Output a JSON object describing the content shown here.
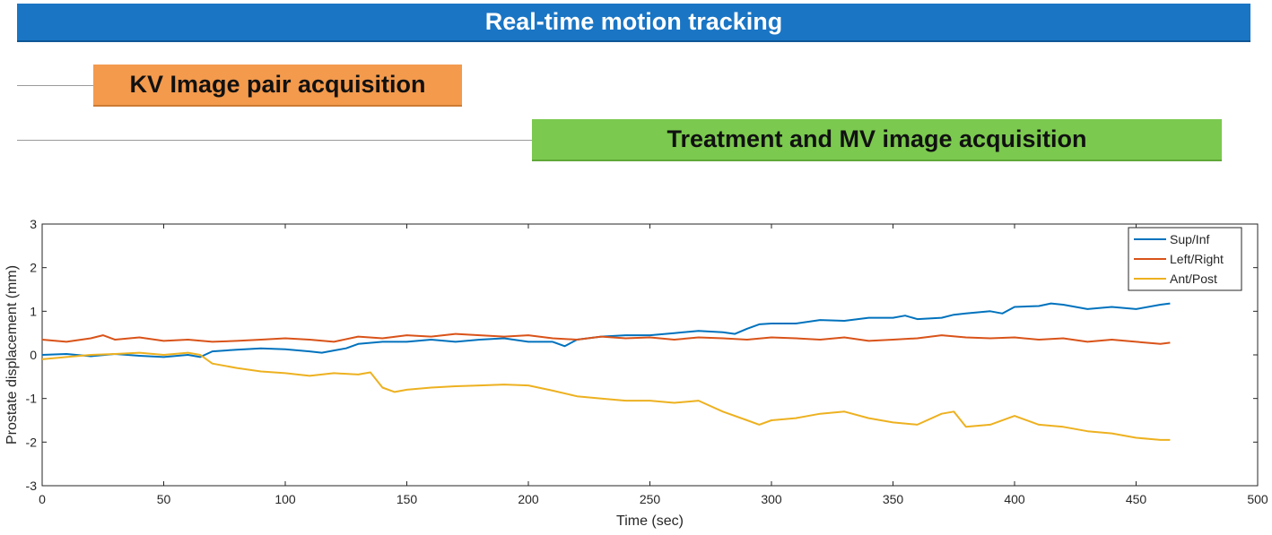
{
  "phases": {
    "realtime": {
      "label": "Real-time motion tracking",
      "color": "#1a75c4"
    },
    "kv": {
      "label": "KV Image pair acquisition",
      "color": "#f39a4d"
    },
    "mv": {
      "label": "Treatment and MV image acquisition",
      "color": "#7bc94f"
    }
  },
  "chart_data": {
    "type": "line",
    "title": "",
    "xlabel": "Time (sec)",
    "ylabel": "Prostate displacement (mm)",
    "xlim": [
      0,
      500
    ],
    "ylim": [
      -3,
      3
    ],
    "xticks": [
      0,
      50,
      100,
      150,
      200,
      250,
      300,
      350,
      400,
      450,
      500
    ],
    "yticks": [
      -3,
      -2,
      -1,
      0,
      1,
      2,
      3
    ],
    "grid": false,
    "legend_position": "top-right",
    "series": [
      {
        "name": "Sup/Inf",
        "color": "#0072bd",
        "x": [
          0,
          10,
          20,
          30,
          40,
          50,
          60,
          65,
          70,
          80,
          90,
          100,
          110,
          115,
          120,
          125,
          130,
          140,
          150,
          160,
          170,
          180,
          190,
          200,
          210,
          215,
          220,
          230,
          240,
          250,
          260,
          270,
          280,
          285,
          290,
          295,
          300,
          310,
          320,
          330,
          340,
          350,
          355,
          360,
          370,
          375,
          380,
          390,
          395,
          400,
          410,
          415,
          420,
          430,
          440,
          450,
          460,
          464
        ],
        "y": [
          0.0,
          0.02,
          -0.03,
          0.02,
          -0.02,
          -0.05,
          0.0,
          -0.05,
          0.08,
          0.12,
          0.15,
          0.13,
          0.08,
          0.05,
          0.1,
          0.15,
          0.25,
          0.3,
          0.3,
          0.35,
          0.3,
          0.35,
          0.38,
          0.3,
          0.3,
          0.2,
          0.35,
          0.42,
          0.45,
          0.45,
          0.5,
          0.55,
          0.52,
          0.48,
          0.6,
          0.7,
          0.72,
          0.72,
          0.8,
          0.78,
          0.85,
          0.85,
          0.9,
          0.82,
          0.85,
          0.92,
          0.95,
          1.0,
          0.95,
          1.1,
          1.12,
          1.18,
          1.15,
          1.05,
          1.1,
          1.05,
          1.15,
          1.18
        ]
      },
      {
        "name": "Left/Right",
        "color": "#d95319",
        "x": [
          0,
          10,
          20,
          25,
          30,
          40,
          50,
          60,
          70,
          80,
          90,
          100,
          110,
          120,
          130,
          140,
          150,
          160,
          170,
          180,
          190,
          200,
          210,
          220,
          230,
          240,
          250,
          260,
          270,
          280,
          290,
          300,
          310,
          320,
          330,
          340,
          350,
          360,
          370,
          380,
          390,
          400,
          410,
          420,
          430,
          440,
          450,
          460,
          464
        ],
        "y": [
          0.35,
          0.3,
          0.38,
          0.45,
          0.35,
          0.4,
          0.32,
          0.35,
          0.3,
          0.32,
          0.35,
          0.38,
          0.35,
          0.3,
          0.42,
          0.38,
          0.45,
          0.42,
          0.48,
          0.45,
          0.42,
          0.45,
          0.38,
          0.35,
          0.42,
          0.38,
          0.4,
          0.35,
          0.4,
          0.38,
          0.35,
          0.4,
          0.38,
          0.35,
          0.4,
          0.32,
          0.35,
          0.38,
          0.45,
          0.4,
          0.38,
          0.4,
          0.35,
          0.38,
          0.3,
          0.35,
          0.3,
          0.25,
          0.28
        ]
      },
      {
        "name": "Ant/Post",
        "color": "#edb120",
        "x": [
          0,
          10,
          20,
          30,
          40,
          50,
          60,
          65,
          70,
          80,
          90,
          100,
          110,
          120,
          130,
          135,
          140,
          145,
          150,
          160,
          170,
          180,
          190,
          200,
          210,
          220,
          230,
          240,
          250,
          260,
          270,
          280,
          290,
          295,
          300,
          310,
          320,
          330,
          340,
          350,
          360,
          370,
          375,
          380,
          390,
          400,
          410,
          420,
          430,
          440,
          450,
          460,
          464
        ],
        "y": [
          -0.1,
          -0.05,
          0.0,
          0.02,
          0.05,
          0.0,
          0.05,
          0.0,
          -0.2,
          -0.3,
          -0.38,
          -0.42,
          -0.48,
          -0.42,
          -0.45,
          -0.4,
          -0.75,
          -0.85,
          -0.8,
          -0.75,
          -0.72,
          -0.7,
          -0.68,
          -0.7,
          -0.82,
          -0.95,
          -1.0,
          -1.05,
          -1.05,
          -1.1,
          -1.05,
          -1.3,
          -1.5,
          -1.6,
          -1.5,
          -1.45,
          -1.35,
          -1.3,
          -1.45,
          -1.55,
          -1.6,
          -1.35,
          -1.3,
          -1.65,
          -1.6,
          -1.4,
          -1.6,
          -1.65,
          -1.75,
          -1.8,
          -1.9,
          -1.95,
          -1.95
        ]
      }
    ]
  }
}
